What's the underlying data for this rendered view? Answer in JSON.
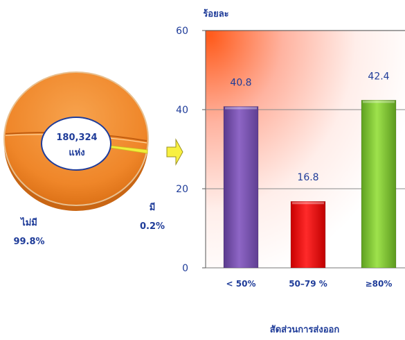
{
  "chart_data": [
    {
      "type": "pie",
      "slices": [
        {
          "label": "ไม่มี",
          "percent_label": "99.8%",
          "value": 99.8
        },
        {
          "label": "มี",
          "percent_label": "0.2%",
          "value": 0.2
        }
      ],
      "center_label": {
        "line1": "180,324",
        "line2": "แห่ง"
      },
      "colors": {
        "main": "#f08a2a",
        "minor": "#f2ee3a"
      }
    },
    {
      "type": "bar",
      "ylabel": "ร้อยละ",
      "xlabel": "สัดส่วนการส่งออก",
      "categories": [
        "< 50%",
        "50–79 %",
        "≥80%"
      ],
      "values": [
        40.8,
        16.8,
        42.4
      ],
      "value_labels": [
        "40.8",
        "16.8",
        "42.4"
      ],
      "ylim": [
        0,
        60
      ],
      "yticks": [
        "0",
        "20",
        "40",
        "60"
      ],
      "grid": true,
      "colors": [
        "#7e56b8",
        "#ff1a1a",
        "#8fd63d"
      ]
    }
  ]
}
